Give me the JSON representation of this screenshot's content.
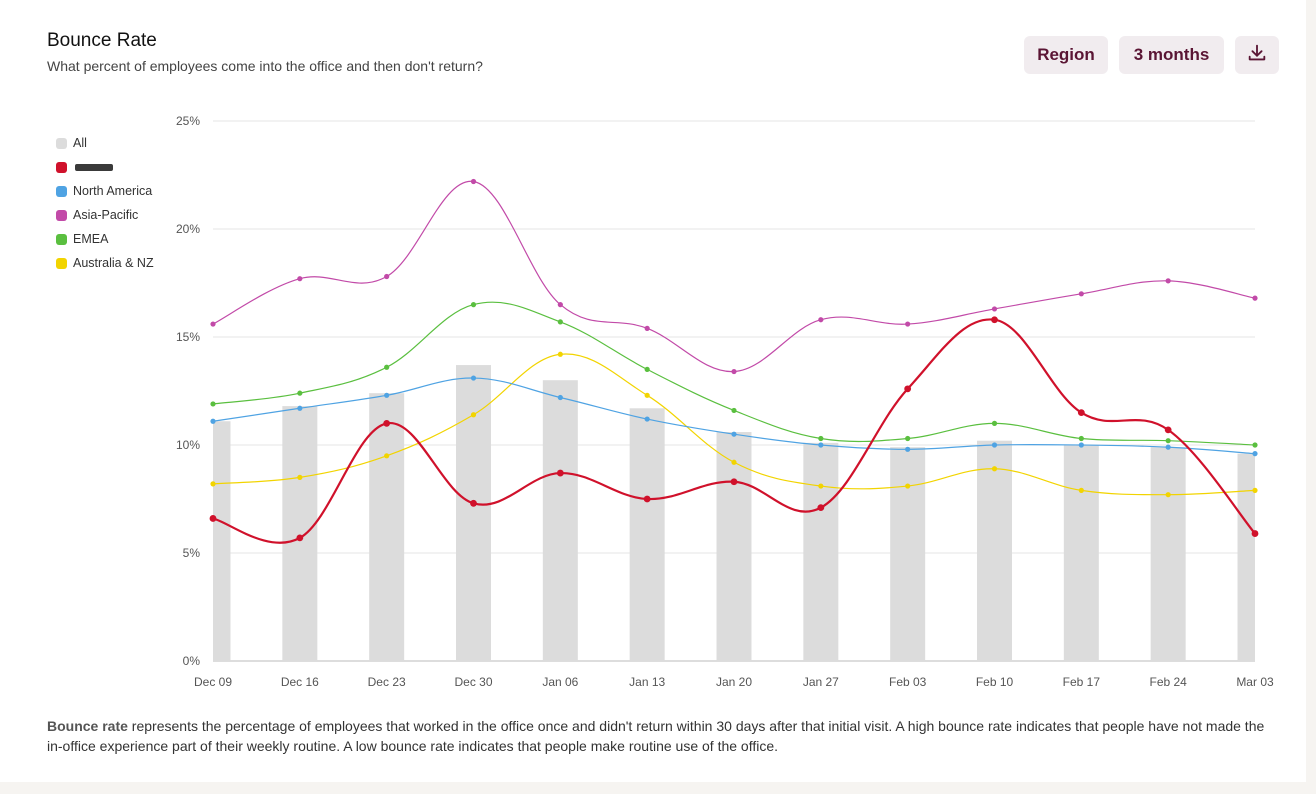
{
  "header": {
    "title": "Bounce Rate",
    "subtitle": "What percent of employees come into the office and then don't return?"
  },
  "controls": {
    "region_label": "Region",
    "range_label": "3 months",
    "download_icon": "download-icon"
  },
  "legend": [
    {
      "name": "All",
      "color": "#dcdcdc"
    },
    {
      "name": "",
      "color": "#d0112b",
      "redacted": true
    },
    {
      "name": "North America",
      "color": "#4fa3e3"
    },
    {
      "name": "Asia-Pacific",
      "color": "#c24aa8"
    },
    {
      "name": "EMEA",
      "color": "#5abf3f"
    },
    {
      "name": "Australia & NZ",
      "color": "#f2d400"
    }
  ],
  "chart_data": {
    "type": "line",
    "x": [
      "Dec 09",
      "Dec 16",
      "Dec 23",
      "Dec 30",
      "Jan 06",
      "Jan 13",
      "Jan 20",
      "Jan 27",
      "Feb 03",
      "Feb 10",
      "Feb 17",
      "Feb 24",
      "Mar 03"
    ],
    "ylim": [
      0,
      25
    ],
    "yticks": [
      "0%",
      "5%",
      "10%",
      "15%",
      "20%",
      "25%"
    ],
    "grid": true,
    "legend_position": "left",
    "bars": {
      "name": "All",
      "color": "#dcdcdc",
      "values": [
        11.1,
        11.8,
        12.4,
        13.7,
        13.0,
        11.7,
        10.6,
        10.1,
        9.9,
        10.2,
        10.0,
        9.9,
        9.6
      ]
    },
    "series": [
      {
        "color": "#d0112b",
        "width": 2.2,
        "values": [
          6.6,
          5.7,
          11.0,
          7.3,
          8.7,
          7.5,
          8.3,
          7.1,
          12.6,
          15.8,
          11.5,
          10.7,
          5.9
        ]
      },
      {
        "name": "North America",
        "color": "#4fa3e3",
        "width": 1.2,
        "values": [
          11.1,
          11.7,
          12.3,
          13.1,
          12.2,
          11.2,
          10.5,
          10.0,
          9.8,
          10.0,
          10.0,
          9.9,
          9.6
        ]
      },
      {
        "name": "Asia-Pacific",
        "color": "#c24aa8",
        "width": 1.2,
        "values": [
          15.6,
          17.7,
          17.8,
          22.2,
          16.5,
          15.4,
          13.4,
          15.8,
          15.6,
          16.3,
          17.0,
          17.6,
          16.8
        ]
      },
      {
        "name": "EMEA",
        "color": "#5abf3f",
        "width": 1.2,
        "values": [
          11.9,
          12.4,
          13.6,
          16.5,
          15.7,
          13.5,
          11.6,
          10.3,
          10.3,
          11.0,
          10.3,
          10.2,
          10.0
        ]
      },
      {
        "name": "Australia & NZ",
        "color": "#f2d400",
        "width": 1.2,
        "values": [
          8.2,
          8.5,
          9.5,
          11.4,
          14.2,
          12.3,
          9.2,
          8.1,
          8.1,
          8.9,
          7.9,
          7.7,
          7.9
        ]
      }
    ]
  },
  "footer": {
    "term": "Bounce rate",
    "text": " represents the percentage of employees that worked in the office once and didn't return within 30 days after that initial visit. A high bounce rate indicates that people have not made the in-office experience part of their weekly routine. A low bounce rate indicates that people make routine use of the office."
  }
}
